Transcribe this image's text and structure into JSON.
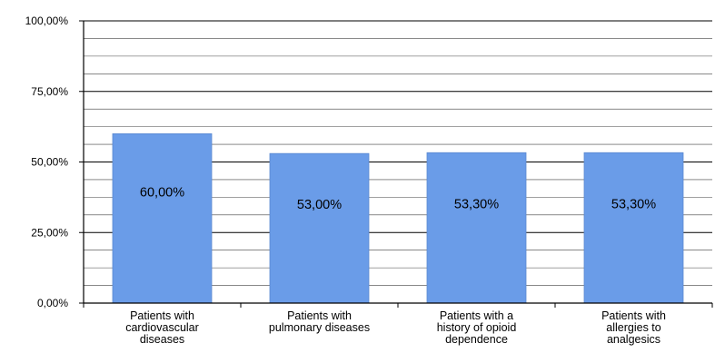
{
  "chart_data": {
    "type": "bar",
    "title": "",
    "xlabel": "",
    "ylabel": "",
    "categories": [
      [
        "Patients with",
        "cardiovascular",
        "diseases"
      ],
      [
        "Patients with",
        "pulmonary diseases"
      ],
      [
        "Patients with a",
        "history of opioid",
        "dependence"
      ],
      [
        "Patients with",
        "allergies to",
        "analgesics"
      ]
    ],
    "values": [
      60.0,
      53.0,
      53.3,
      53.3
    ],
    "data_labels": [
      "60,00%",
      "53,00%",
      "53,30%",
      "53,30%"
    ],
    "ylim": [
      0,
      100
    ],
    "y_ticks": [
      0,
      25,
      50,
      75,
      100
    ],
    "y_tick_labels": [
      "0,00%",
      "25,00%",
      "50,00%",
      "75,00%",
      "100,00%"
    ],
    "minor_gridlines_per_major": 3,
    "grid": true,
    "legend": "none",
    "colors": {
      "bar": "#6a9ce8",
      "bar_edge": "#5a88d0",
      "gridline": "#000000",
      "axis": "#000000"
    }
  }
}
